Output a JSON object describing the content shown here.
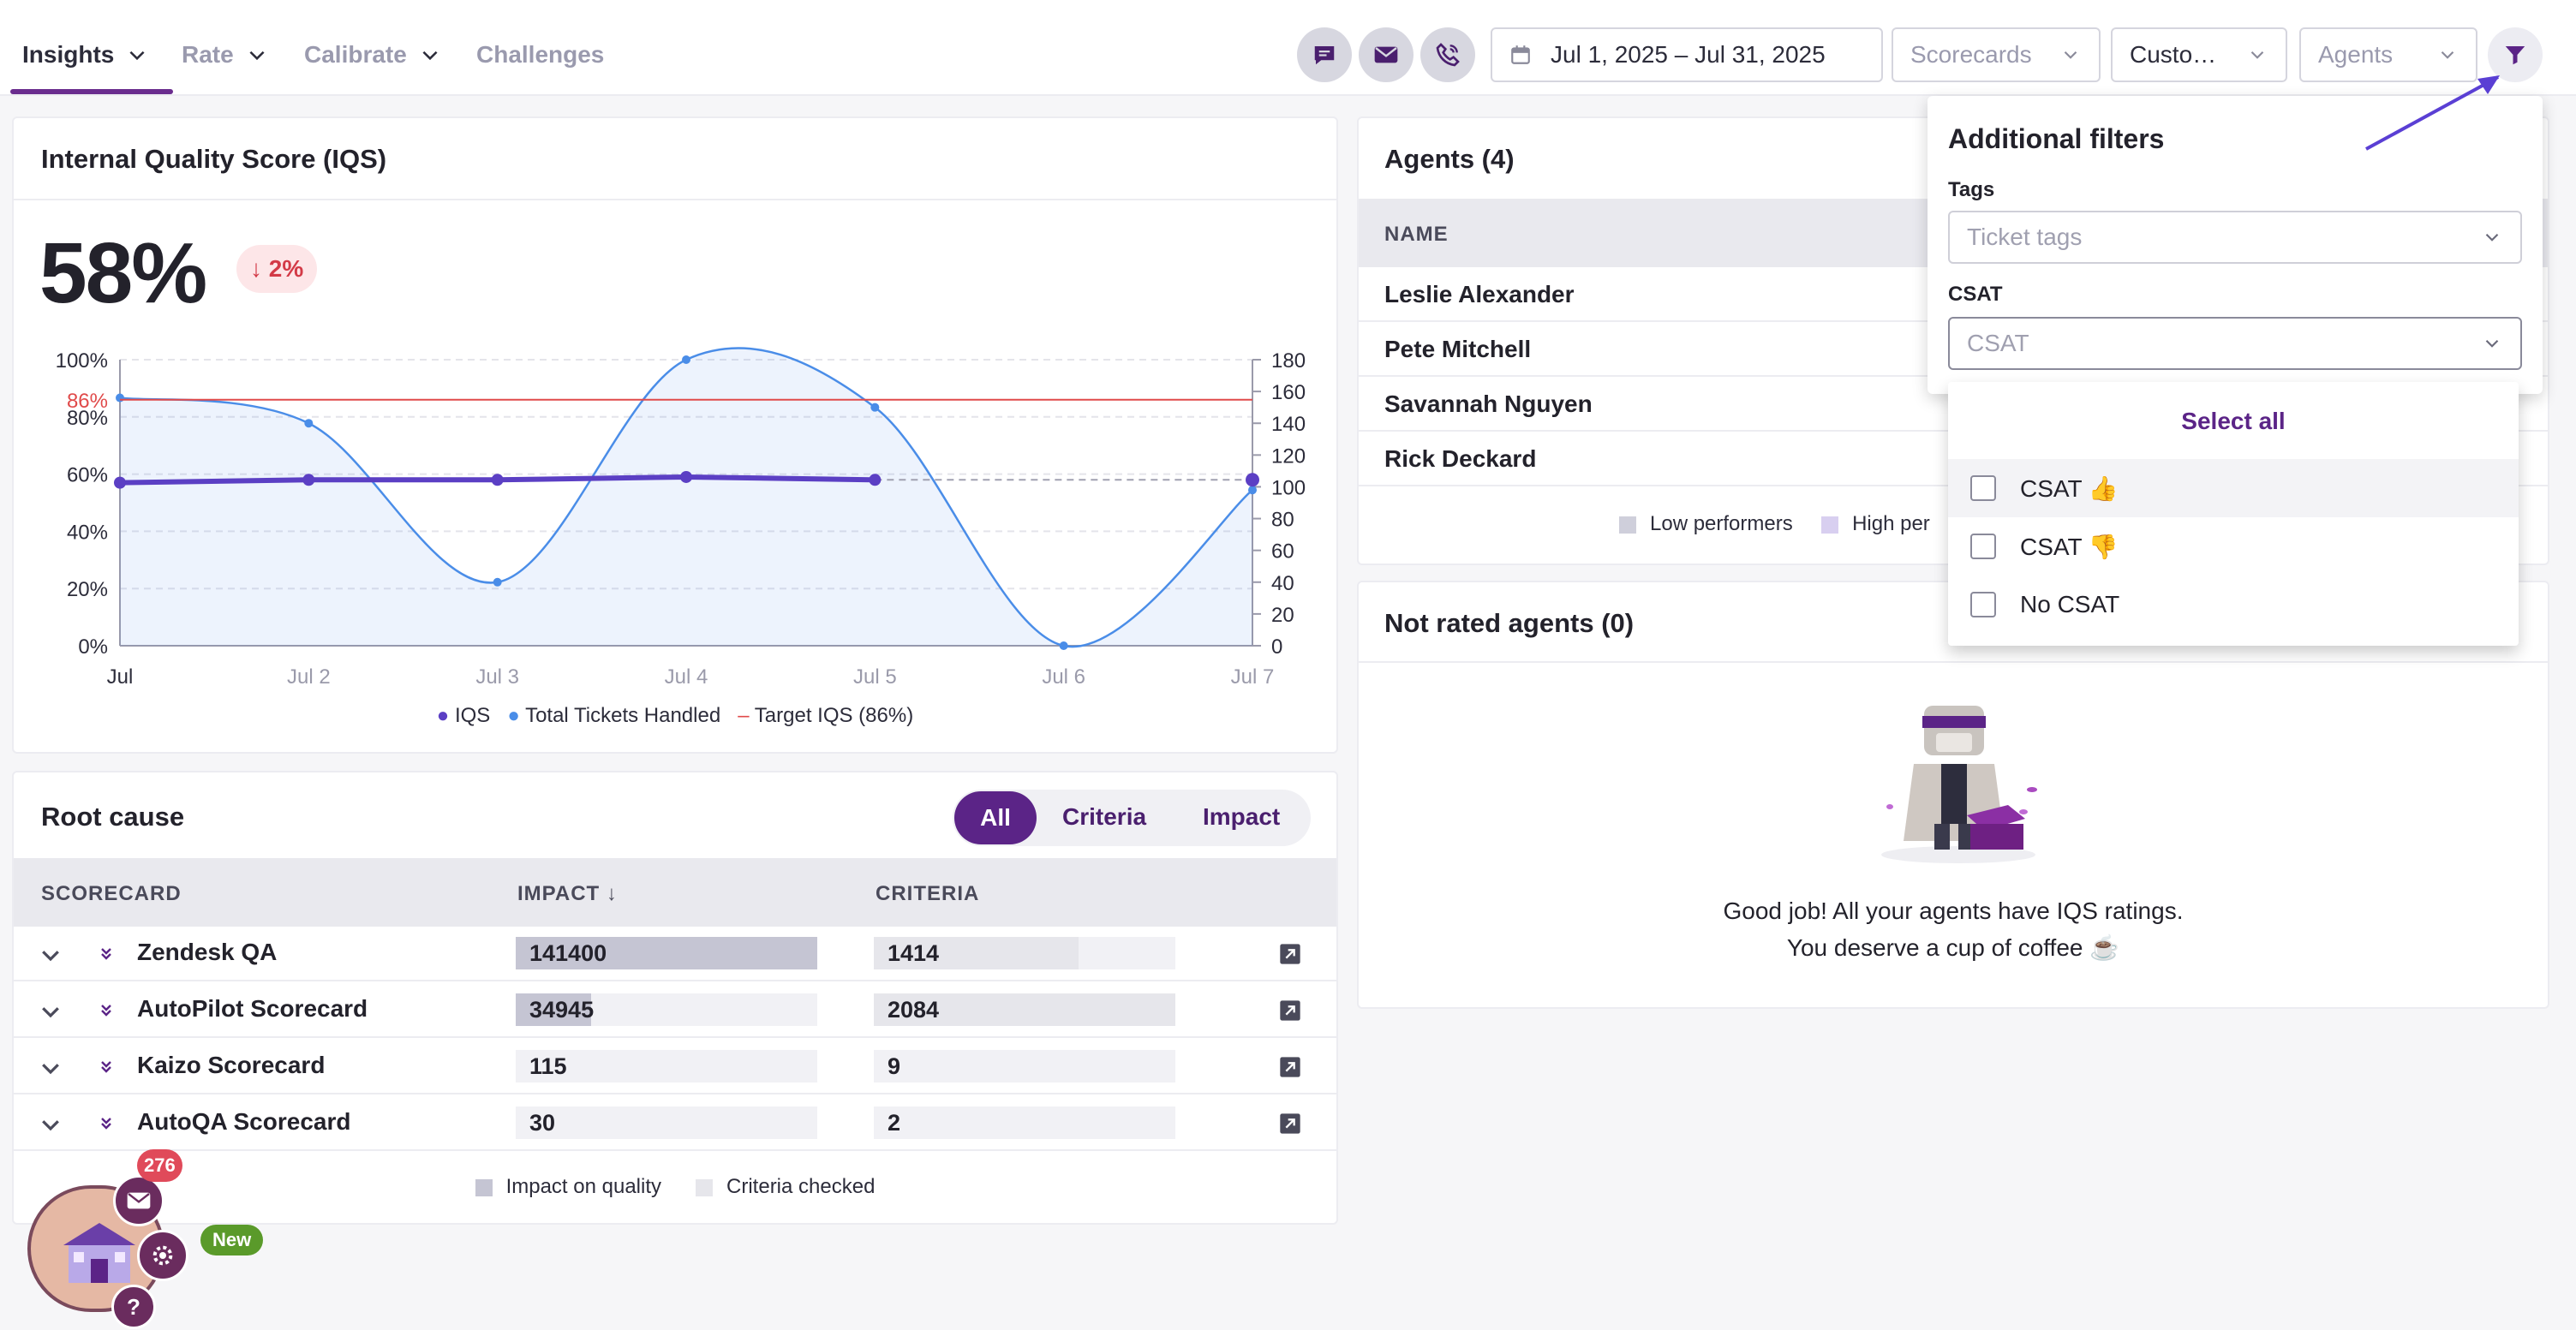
{
  "nav": {
    "tabs": [
      {
        "label": "Insights",
        "active": true
      },
      {
        "label": "Rate"
      },
      {
        "label": "Calibrate"
      },
      {
        "label": "Challenges"
      }
    ],
    "date_range": "Jul 1, 2025 – Jul 31, 2025",
    "filters": {
      "scorecards": "Scorecards",
      "custom": "Custo…",
      "agents": "Agents"
    },
    "icons": [
      "chat-icon",
      "email-icon",
      "phone-icon",
      "calendar-icon",
      "filter-icon"
    ]
  },
  "iqs": {
    "title": "Internal Quality Score (IQS)",
    "score": "58%",
    "delta": "↓ 2%",
    "legend": {
      "iqs": "IQS",
      "tickets": "Total Tickets Handled",
      "target": "Target IQS (86%)"
    }
  },
  "chart_data": {
    "type": "line",
    "categories": [
      "Jul",
      "Jul 2",
      "Jul 3",
      "Jul 4",
      "Jul 5",
      "Jul 6",
      "Jul 7"
    ],
    "series": [
      {
        "name": "IQS",
        "axis": "left",
        "values": [
          57,
          58,
          58,
          59,
          58,
          null,
          58
        ],
        "color": "#5b3fc4"
      },
      {
        "name": "Total Tickets Handled",
        "axis": "right",
        "values": [
          156,
          140,
          40,
          180,
          150,
          0,
          98
        ],
        "color": "#4a8de8"
      },
      {
        "name": "Target IQS (86%)",
        "axis": "left",
        "values": [
          86,
          86,
          86,
          86,
          86,
          86,
          86
        ],
        "color": "#e04a4a"
      }
    ],
    "y_left_ticks": [
      "100%",
      "80%",
      "60%",
      "40%",
      "20%",
      "0%"
    ],
    "y_left_range": [
      0,
      100
    ],
    "target_label": "86%",
    "y_right_ticks": [
      "180",
      "160",
      "140",
      "120",
      "100",
      "80",
      "60",
      "40",
      "20",
      "0"
    ],
    "y_right_range": [
      0,
      180
    ]
  },
  "root_cause": {
    "title": "Root cause",
    "toggle": [
      "All",
      "Criteria",
      "Impact"
    ],
    "headers": {
      "scorecard": "SCORECARD",
      "impact": "IMPACT ↓",
      "criteria": "CRITERIA"
    },
    "rows": [
      {
        "name": "Zendesk QA",
        "impact": "141400",
        "impact_pct": 100,
        "criteria": "1414",
        "criteria_pct": 68
      },
      {
        "name": "AutoPilot Scorecard",
        "impact": "34945",
        "impact_pct": 25,
        "criteria": "2084",
        "criteria_pct": 100
      },
      {
        "name": "Kaizo Scorecard",
        "impact": "115",
        "impact_pct": 0,
        "criteria": "9",
        "criteria_pct": 0
      },
      {
        "name": "AutoQA Scorecard",
        "impact": "30",
        "impact_pct": 0,
        "criteria": "2",
        "criteria_pct": 0
      }
    ],
    "legend": {
      "impact": "Impact on quality",
      "criteria": "Criteria checked"
    }
  },
  "agents": {
    "title": "Agents (4)",
    "header": "NAME",
    "names": [
      "Leslie Alexander",
      "Pete Mitchell",
      "Savannah Nguyen",
      "Rick Deckard"
    ],
    "legend": {
      "low": "Low performers",
      "high": "High per"
    }
  },
  "not_rated": {
    "title": "Not rated agents (0)",
    "line1": "Good job! All your agents have IQS ratings.",
    "line2": "You deserve a cup of coffee ☕"
  },
  "additional_filters": {
    "title": "Additional filters",
    "tags_label": "Tags",
    "tags_placeholder": "Ticket tags",
    "csat_label": "CSAT",
    "csat_placeholder": "CSAT",
    "select_all": "Select all",
    "options": [
      "CSAT 👍",
      "CSAT 👎",
      "No CSAT"
    ]
  },
  "widget": {
    "badge": "276",
    "new_label": "New"
  },
  "colors": {
    "accent": "#5b2487",
    "target": "#e04a4a",
    "iqs": "#5b3fc4",
    "tickets": "#4a8de8"
  }
}
